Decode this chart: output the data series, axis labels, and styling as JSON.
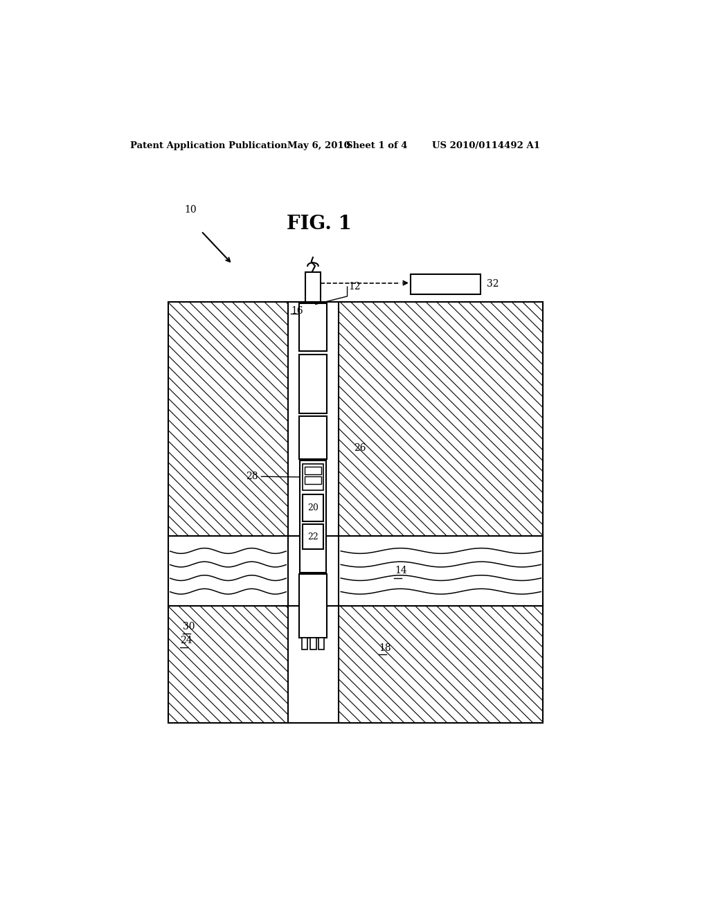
{
  "bg_color": "#ffffff",
  "header_text1": "Patent Application Publication",
  "header_text2": "May 6, 2010",
  "header_text3": "Sheet 1 of 4",
  "header_text4": "US 2010/0114492 A1",
  "fig_title": "FIG. 1",
  "label_10": "10",
  "label_12": "12",
  "label_14": "14",
  "label_16": "16",
  "label_18": "18",
  "label_20": "20",
  "label_22": "22",
  "label_24": "24",
  "label_26": "26",
  "label_28": "28",
  "label_30": "30",
  "label_32": "32",
  "line_color": "#000000"
}
